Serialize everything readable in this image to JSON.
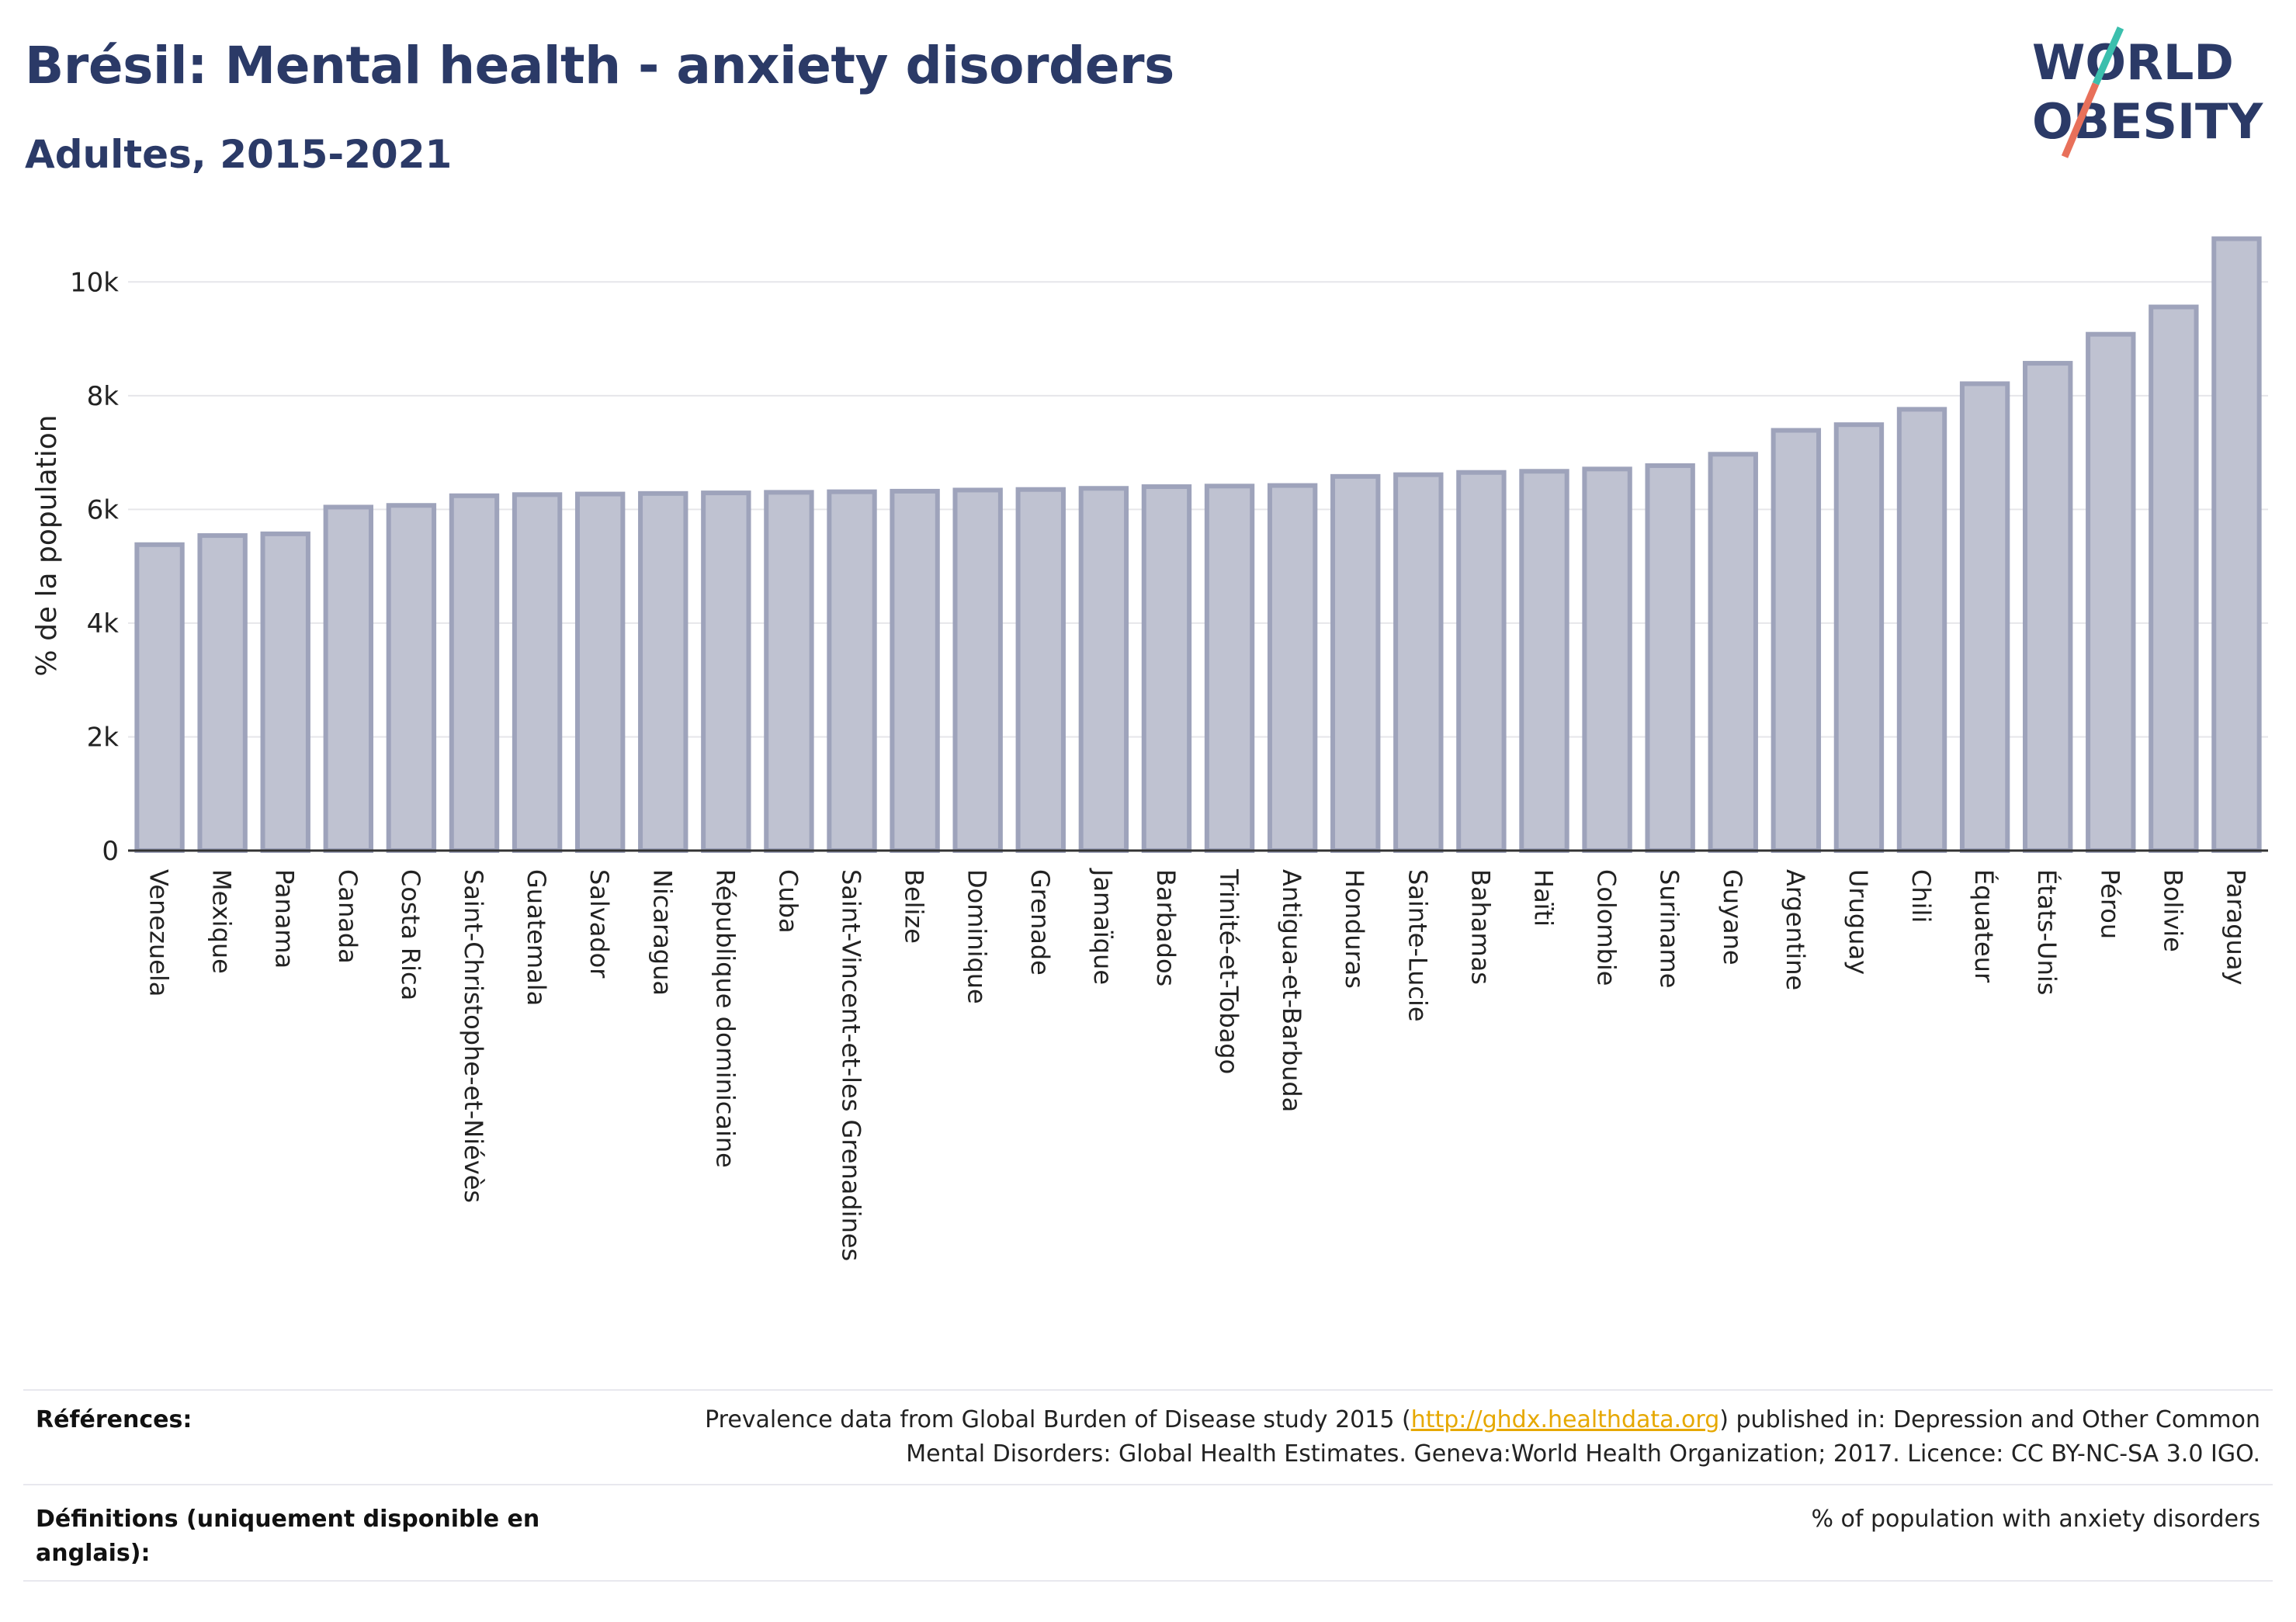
{
  "header": {
    "title": "Brésil: Mental health - anxiety disorders",
    "subtitle": "Adultes, 2015-2021"
  },
  "logo": {
    "line1": "WORLD",
    "line2": "OBESITY",
    "accent_color": "#3bbfad",
    "slash_color": "#e8705a",
    "text_color": "#2b3a67"
  },
  "chart_data": {
    "type": "bar",
    "ylabel": "% de la population",
    "xlabel": "",
    "ylim": [
      0,
      11000
    ],
    "yticks": [
      0,
      2000,
      4000,
      6000,
      8000,
      10000
    ],
    "ytick_labels": [
      "0",
      "2k",
      "4k",
      "6k",
      "8k",
      "10k"
    ],
    "grid": true,
    "bar_color": "#bfc2d1",
    "bar_edge_color": "#9ea3bb",
    "categories": [
      "Venezuela",
      "Mexique",
      "Panama",
      "Canada",
      "Costa Rica",
      "Saint-Christophe-et-Niévès",
      "Guatemala",
      "Salvador",
      "Nicaragua",
      "République dominicaine",
      "Cuba",
      "Saint-Vincent-et-les Grenadines",
      "Belize",
      "Dominique",
      "Grenade",
      "Jamaïque",
      "Barbados",
      "Trinité-et-Tobago",
      "Antigua-et-Barbuda",
      "Honduras",
      "Sainte-Lucie",
      "Bahamas",
      "Haïti",
      "Colombie",
      "Suriname",
      "Guyane",
      "Argentine",
      "Uruguay",
      "Chili",
      "Équateur",
      "États-Unis",
      "Pérou",
      "Bolivie",
      "Paraguay"
    ],
    "values": [
      5380,
      5540,
      5570,
      6040,
      6070,
      6240,
      6260,
      6270,
      6280,
      6290,
      6300,
      6310,
      6320,
      6340,
      6350,
      6370,
      6400,
      6410,
      6420,
      6580,
      6610,
      6650,
      6670,
      6710,
      6770,
      6970,
      7390,
      7490,
      7760,
      8210,
      8570,
      9080,
      9560,
      10760
    ]
  },
  "footer": {
    "references_label": "Références:",
    "references_text_1": "Prevalence data from Global Burden of Disease study 2015 (",
    "references_link": "http://ghdx.healthdata.org",
    "references_text_2": ") published in: Depression and Other Common",
    "references_text_3": "Mental Disorders: Global Health Estimates. Geneva:World Health Organization; 2017. Licence: CC BY-NC-SA 3.0 IGO.",
    "definitions_label_1": "Définitions (uniquement disponible en",
    "definitions_label_2": "anglais):",
    "definitions_text": "% of population with anxiety disorders"
  }
}
